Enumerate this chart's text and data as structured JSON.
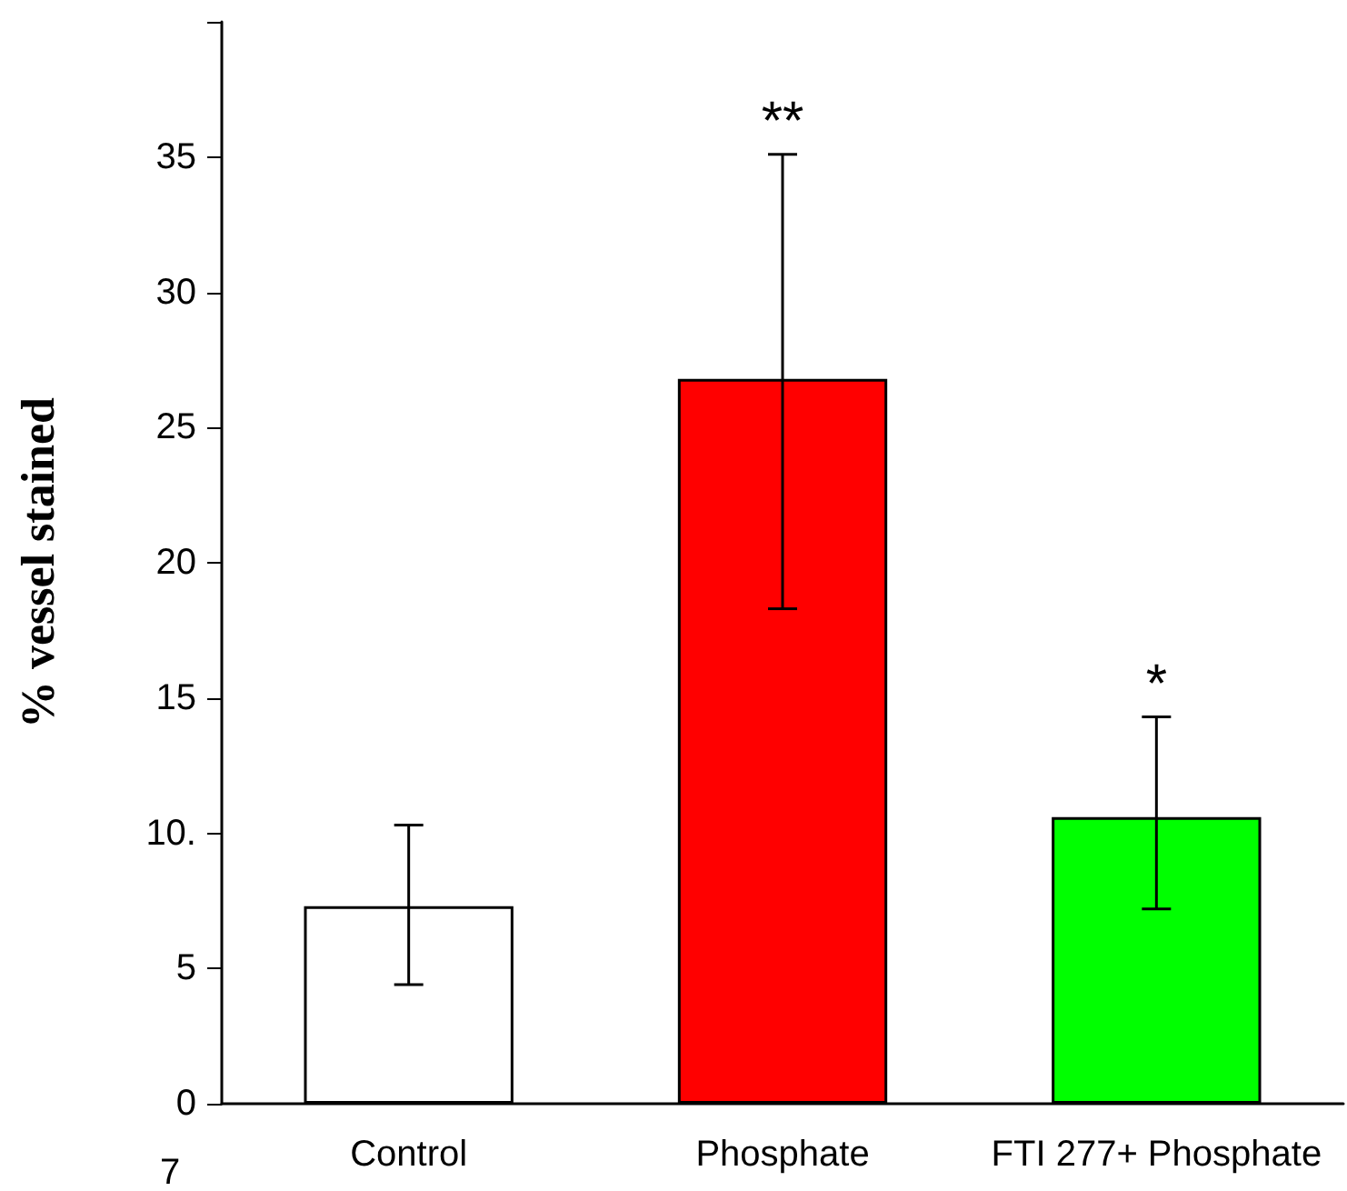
{
  "chart_data": {
    "type": "bar",
    "ylabel": "% vessel stained",
    "categories": [
      "Control",
      "Phosphate",
      "FTI 277+ Phosphate"
    ],
    "values": [
      7.3,
      26.8,
      10.6
    ],
    "colors": [
      "#ffffff",
      "#ff0000",
      "#00ff00"
    ],
    "errors": [
      [
        4.4,
        10.3
      ],
      [
        18.3,
        35.1
      ],
      [
        7.2,
        14.3
      ]
    ],
    "ylim": [
      0,
      40
    ],
    "yticks": [
      0,
      5,
      {
        "value": 10,
        "label": "10."
      },
      15,
      20,
      25,
      30,
      35
    ],
    "grid": false,
    "annotations": [
      "**",
      "*",
      "7"
    ]
  }
}
